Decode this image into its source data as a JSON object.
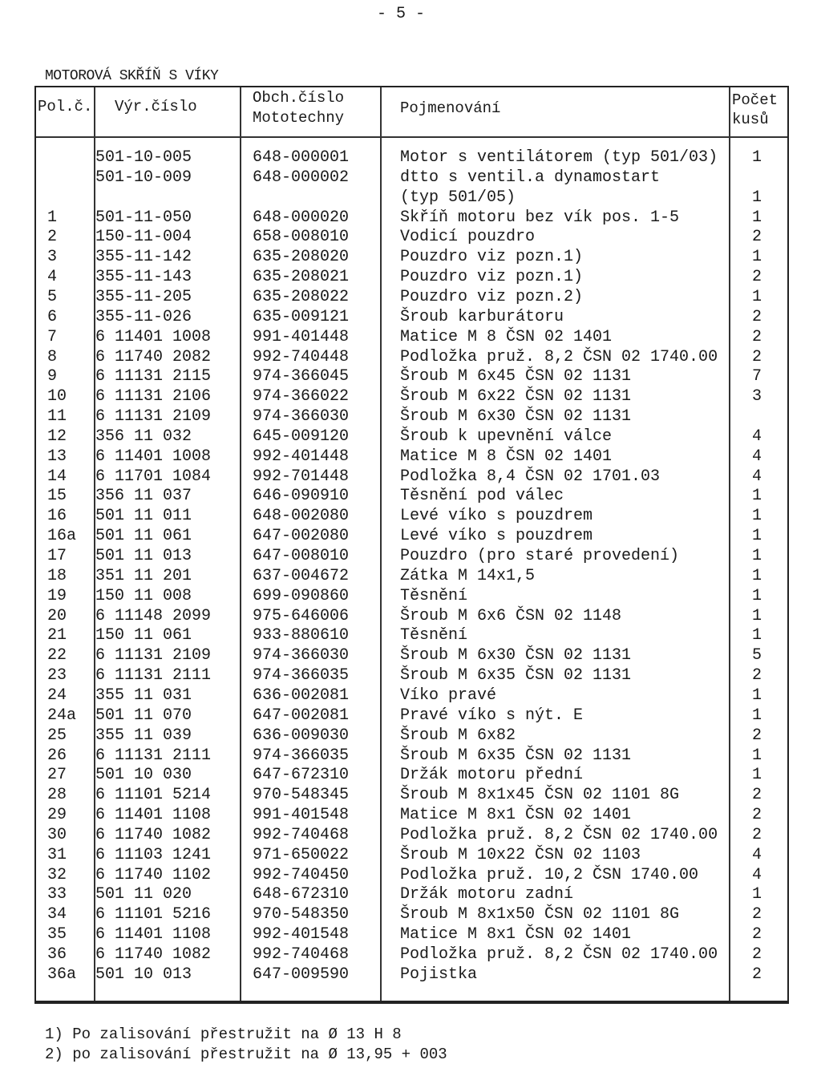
{
  "page_number": "- 5 -",
  "title": "MOTOROVÁ SKŘÍŇ S VÍKY",
  "columns": {
    "pos": "Pol.č.",
    "vyr": "Výr.číslo",
    "obch_1": "Obch.číslo",
    "obch_2": "Mototechny",
    "name": "Pojmenování",
    "qty_1": "Počet",
    "qty_2": "kusů"
  },
  "rows": [
    {
      "pos": "",
      "vyr": "501-10-005",
      "obch": "648-000001",
      "name": "Motor s ventilátorem (typ 501/03)",
      "qty": "1"
    },
    {
      "pos": "",
      "vyr": "501-10-009",
      "obch": "648-000002",
      "name": "dtto s ventil.a dynamostart",
      "name2": "(typ 501/05)",
      "qty": "1"
    },
    {
      "pos": "1",
      "vyr": "501-11-050",
      "obch": "648-000020",
      "name": "Skříň motoru bez vík pos. 1-5",
      "qty": "1"
    },
    {
      "pos": "2",
      "vyr": "150-11-004",
      "obch": "658-008010",
      "name": "Vodicí pouzdro",
      "qty": "2"
    },
    {
      "pos": "3",
      "vyr": "355-11-142",
      "obch": "635-208020",
      "name": "Pouzdro viz pozn.1)",
      "qty": "1"
    },
    {
      "pos": "4",
      "vyr": "355-11-143",
      "obch": "635-208021",
      "name": "Pouzdro viz pozn.1)",
      "qty": "2"
    },
    {
      "pos": "5",
      "vyr": "355-11-205",
      "obch": "635-208022",
      "name": "Pouzdro viz pozn.2)",
      "qty": "1"
    },
    {
      "pos": "6",
      "vyr": "355-11-026",
      "obch": "635-009121",
      "name": "Šroub karburátoru",
      "qty": "2"
    },
    {
      "pos": "7",
      "vyr": "6 11401 1008",
      "obch": "991-401448",
      "name": "Matice M 8 ČSN 02 1401",
      "qty": "2"
    },
    {
      "pos": "8",
      "vyr": "6 11740 2082",
      "obch": "992-740448",
      "name": "Podložka pruž. 8,2 ČSN 02 1740.00",
      "qty": "2"
    },
    {
      "pos": "9",
      "vyr": "6 11131 2115",
      "obch": "974-366045",
      "name": "Šroub M 6x45 ČSN 02 1131",
      "qty": "7"
    },
    {
      "pos": "10",
      "vyr": "6 11131 2106",
      "obch": "974-366022",
      "name": "Šroub M 6x22 ČSN 02 1131",
      "qty": "3"
    },
    {
      "pos": "11",
      "vyr": "6 11131 2109",
      "obch": "974-366030",
      "name": "Šroub M 6x30 ČSN 02 1131",
      "qty": ""
    },
    {
      "pos": "12",
      "vyr": "356 11 032",
      "obch": "645-009120",
      "name": "Šroub k upevnění válce",
      "qty": "4"
    },
    {
      "pos": "13",
      "vyr": "6 11401 1008",
      "obch": "992-401448",
      "name": "Matice M 8 ČSN 02 1401",
      "qty": "4"
    },
    {
      "pos": "14",
      "vyr": "6 11701 1084",
      "obch": "992-701448",
      "name": "Podložka 8,4 ČSN 02 1701.03",
      "qty": "4"
    },
    {
      "pos": "15",
      "vyr": "356 11 037",
      "obch": "646-090910",
      "name": "Těsnění pod válec",
      "qty": "1"
    },
    {
      "pos": "16",
      "vyr": "501 11 011",
      "obch": "648-002080",
      "name": "Levé víko s pouzdrem",
      "qty": "1"
    },
    {
      "pos": "16a",
      "vyr": "501 11 061",
      "obch": "647-002080",
      "name": "Levé víko s pouzdrem",
      "qty": "1"
    },
    {
      "pos": "17",
      "vyr": "501 11 013",
      "obch": "647-008010",
      "name": "Pouzdro (pro staré provedení)",
      "qty": "1"
    },
    {
      "pos": "18",
      "vyr": "351 11 201",
      "obch": "637-004672",
      "name": "Zátka M 14x1,5",
      "qty": "1"
    },
    {
      "pos": "19",
      "vyr": "150 11 008",
      "obch": "699-090860",
      "name": "Těsnění",
      "qty": "1"
    },
    {
      "pos": "20",
      "vyr": "6 11148 2099",
      "obch": "975-646006",
      "name": "Šroub M 6x6 ČSN 02 1148",
      "qty": "1"
    },
    {
      "pos": "21",
      "vyr": "150 11 061",
      "obch": "933-880610",
      "name": "Těsnění",
      "qty": "1"
    },
    {
      "pos": "22",
      "vyr": "6 11131 2109",
      "obch": "974-366030",
      "name": "Šroub M 6x30 ČSN 02 1131",
      "qty": "5"
    },
    {
      "pos": "23",
      "vyr": "6 11131 2111",
      "obch": "974-366035",
      "name": "Šroub M 6x35 ČSN 02 1131",
      "qty": "2"
    },
    {
      "pos": "24",
      "vyr": "355 11 031",
      "obch": "636-002081",
      "name": "Víko pravé",
      "qty": "1"
    },
    {
      "pos": "24a",
      "vyr": "501 11 070",
      "obch": "647-002081",
      "name": "Pravé víko s nýt. E",
      "qty": "1"
    },
    {
      "pos": "25",
      "vyr": "355 11 039",
      "obch": "636-009030",
      "name": "Šroub M 6x82",
      "qty": "2"
    },
    {
      "pos": "26",
      "vyr": "6 11131 2111",
      "obch": "974-366035",
      "name": "Šroub M 6x35 ČSN 02 1131",
      "qty": "1"
    },
    {
      "pos": "27",
      "vyr": "501 10 030",
      "obch": "647-672310",
      "name": "Držák motoru přední",
      "qty": "1"
    },
    {
      "pos": "28",
      "vyr": "6 11101 5214",
      "obch": "970-548345",
      "name": "Šroub M 8x1x45 ČSN 02 1101 8G",
      "qty": "2"
    },
    {
      "pos": "29",
      "vyr": "6 11401 1108",
      "obch": "991-401548",
      "name": "Matice M 8x1 ČSN 02 1401",
      "qty": "2"
    },
    {
      "pos": "30",
      "vyr": "6 11740 1082",
      "obch": "992-740468",
      "name": "Podložka pruž. 8,2 ČSN 02 1740.00",
      "qty": "2"
    },
    {
      "pos": "31",
      "vyr": "6 11103 1241",
      "obch": "971-650022",
      "name": "Šroub M 10x22 ČSN 02 1103",
      "qty": "4"
    },
    {
      "pos": "32",
      "vyr": "6 11740 1102",
      "obch": "992-740450",
      "name": "Podložka pruž. 10,2 ČSN 1740.00",
      "qty": "4"
    },
    {
      "pos": "33",
      "vyr": "501 11 020",
      "obch": "648-672310",
      "name": "Držák motoru zadní",
      "qty": "1"
    },
    {
      "pos": "34",
      "vyr": "6 11101 5216",
      "obch": "970-548350",
      "name": "Šroub M 8x1x50 ČSN 02 1101 8G",
      "qty": "2"
    },
    {
      "pos": "35",
      "vyr": "6 11401 1108",
      "obch": "992-401548",
      "name": "Matice M 8x1 ČSN 02 1401",
      "qty": "2"
    },
    {
      "pos": "36",
      "vyr": "6 11740 1082",
      "obch": "992-740468",
      "name": "Podložka pruž. 8,2 ČSN 02 1740.00",
      "qty": "2"
    },
    {
      "pos": "36a",
      "vyr": "501 10 013",
      "obch": "647-009590",
      "name": "Pojistka",
      "qty": "2"
    }
  ],
  "footnotes": [
    "1) Po zalisování přestružit na Ø 13 H 8",
    "2) po zalisování přestružit na Ø 13,95 + 003"
  ]
}
